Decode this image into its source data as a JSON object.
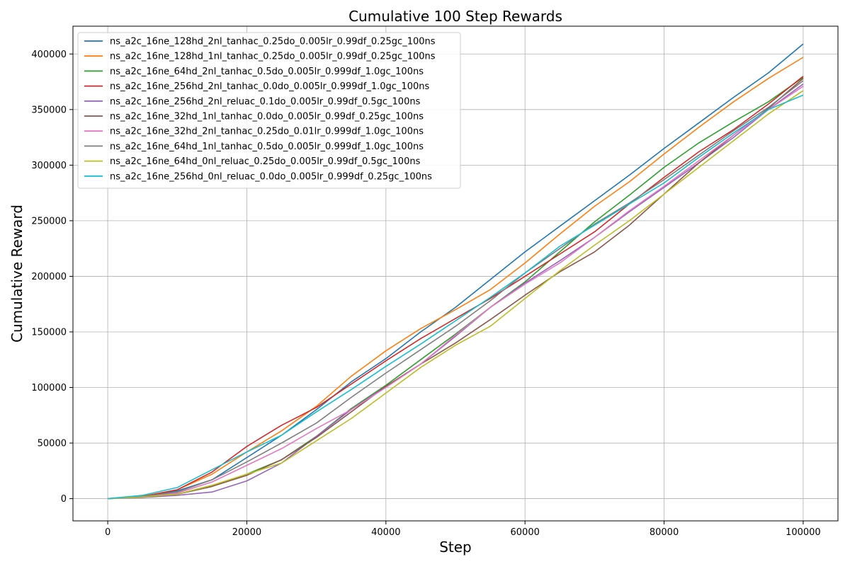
{
  "chart_data": {
    "type": "line",
    "title": "Cumulative 100 Step Rewards",
    "xlabel": "Step",
    "ylabel": "Cumulative Reward",
    "xlim": [
      -5000,
      105000
    ],
    "ylim": [
      -20000,
      425000
    ],
    "xticks": [
      0,
      20000,
      40000,
      60000,
      80000,
      100000
    ],
    "xtick_labels": [
      "0",
      "20000",
      "40000",
      "60000",
      "80000",
      "100000"
    ],
    "yticks": [
      0,
      50000,
      100000,
      150000,
      200000,
      250000,
      300000,
      350000,
      400000
    ],
    "ytick_labels": [
      "0",
      "50000",
      "100000",
      "150000",
      "200000",
      "250000",
      "300000",
      "350000",
      "400000"
    ],
    "grid": true,
    "legend_position": "top-left",
    "x": [
      0,
      5000,
      10000,
      15000,
      20000,
      25000,
      30000,
      35000,
      40000,
      45000,
      50000,
      55000,
      60000,
      65000,
      70000,
      75000,
      80000,
      85000,
      90000,
      95000,
      100000
    ],
    "series": [
      {
        "name": "ns_a2c_16ne_128hd_2nl_tanhac_0.25do_0.005lr_0.99df_0.25gc_100ns",
        "color": "#1f77b4",
        "values": [
          0,
          2000,
          7000,
          17000,
          37000,
          57000,
          80000,
          105000,
          126000,
          150000,
          172000,
          197000,
          222000,
          245000,
          268000,
          291000,
          315000,
          338000,
          361000,
          383000,
          409000
        ]
      },
      {
        "name": "ns_a2c_16ne_128hd_1nl_tanhac_0.25do_0.005lr_0.99df_0.25gc_100ns",
        "color": "#ff7f0e",
        "values": [
          0,
          2000,
          8000,
          22000,
          42000,
          61000,
          83000,
          110000,
          133000,
          153000,
          170000,
          188000,
          212000,
          238000,
          263000,
          285000,
          310000,
          334000,
          357000,
          378000,
          397000
        ]
      },
      {
        "name": "ns_a2c_16ne_64hd_2nl_tanhac_0.5do_0.005lr_0.999df_1.0gc_100ns",
        "color": "#2ca02c",
        "values": [
          0,
          1500,
          4000,
          11000,
          22000,
          35000,
          56000,
          81000,
          102000,
          125000,
          148000,
          172000,
          195000,
          222000,
          249000,
          273000,
          298000,
          320000,
          339000,
          357000,
          379000
        ]
      },
      {
        "name": "ns_a2c_16ne_256hd_2nl_tanhac_0.0do_0.005lr_0.999df_1.0gc_100ns",
        "color": "#d62728",
        "values": [
          0,
          2000,
          8000,
          24000,
          47000,
          66000,
          82000,
          103000,
          124000,
          144000,
          162000,
          180000,
          200000,
          220000,
          240000,
          265000,
          289000,
          312000,
          332000,
          355000,
          380000
        ]
      },
      {
        "name": "ns_a2c_16ne_256hd_2nl_reluac_0.1do_0.005lr_0.99df_0.5gc_100ns",
        "color": "#9467bd",
        "values": [
          0,
          1000,
          3000,
          6000,
          16000,
          32000,
          56000,
          80000,
          101000,
          121000,
          146000,
          172000,
          194000,
          214000,
          235000,
          258000,
          280000,
          302000,
          325000,
          350000,
          373000
        ]
      },
      {
        "name": "ns_a2c_16ne_32hd_1nl_tanhac_0.0do_0.005lr_0.99df_0.25gc_100ns",
        "color": "#8c564b",
        "values": [
          0,
          1500,
          4000,
          11000,
          21000,
          35000,
          55000,
          78000,
          101000,
          121000,
          140000,
          161000,
          183000,
          204000,
          222000,
          246000,
          274000,
          302000,
          327000,
          351000,
          378000
        ]
      },
      {
        "name": "ns_a2c_16ne_32hd_2nl_tanhac_0.25do_0.01lr_0.999df_1.0gc_100ns",
        "color": "#e377c2",
        "values": [
          0,
          1500,
          5000,
          15000,
          30000,
          45000,
          63000,
          80000,
          100000,
          121000,
          147000,
          172000,
          193000,
          212000,
          235000,
          259000,
          281000,
          304000,
          327000,
          350000,
          371000
        ]
      },
      {
        "name": "ns_a2c_16ne_64hd_1nl_tanhac_0.5do_0.005lr_0.999df_1.0gc_100ns",
        "color": "#7f7f7f",
        "values": [
          0,
          2000,
          6000,
          17000,
          33000,
          50000,
          68000,
          91000,
          113000,
          134000,
          155000,
          178000,
          203000,
          225000,
          247000,
          266000,
          287000,
          309000,
          331000,
          352000,
          376000
        ]
      },
      {
        "name": "ns_a2c_16ne_64hd_0nl_reluac_0.25do_0.005lr_0.99df_0.5gc_100ns",
        "color": "#bcbd22",
        "values": [
          0,
          1500,
          4000,
          12000,
          22000,
          32000,
          52000,
          72000,
          95000,
          118000,
          138000,
          155000,
          180000,
          205000,
          228000,
          250000,
          274000,
          298000,
          322000,
          346000,
          367000
        ]
      },
      {
        "name": "ns_a2c_16ne_256hd_0nl_reluac_0.0do_0.005lr_0.999df_0.25gc_100ns",
        "color": "#17becf",
        "values": [
          0,
          3000,
          10000,
          26000,
          42000,
          57000,
          78000,
          98000,
          119000,
          139000,
          160000,
          181000,
          203000,
          227000,
          246000,
          265000,
          284000,
          307000,
          329000,
          350000,
          363000
        ]
      }
    ]
  }
}
